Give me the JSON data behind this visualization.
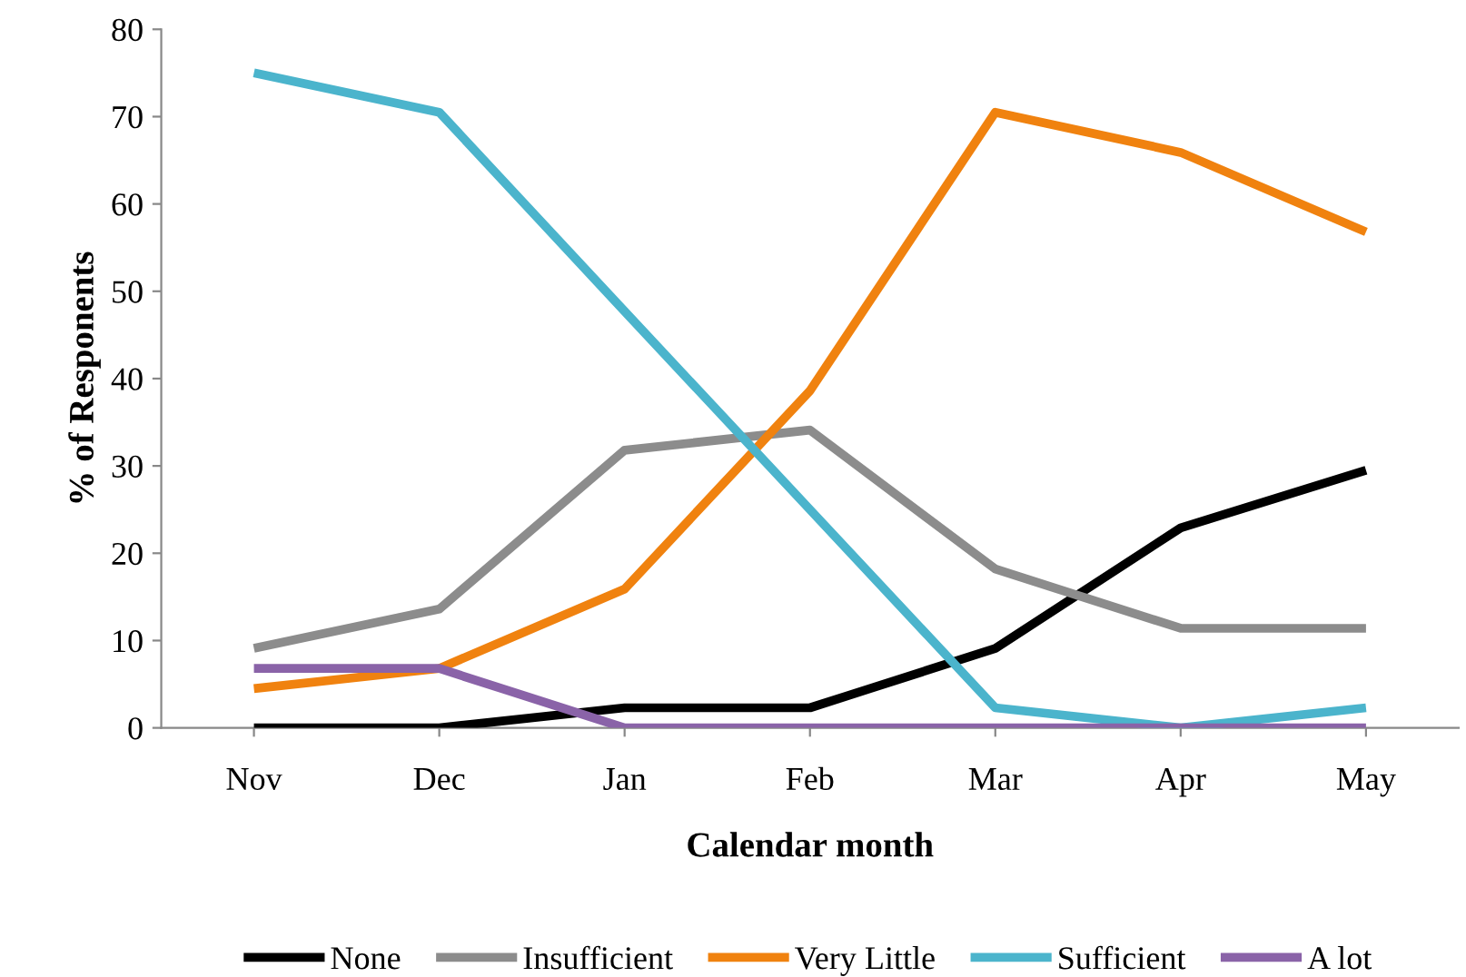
{
  "chart_data": {
    "type": "line",
    "xlabel": "Calendar month",
    "ylabel": "% of Responents",
    "categories": [
      "Nov",
      "Dec",
      "Jan",
      "Feb",
      "Mar",
      "Apr",
      "May"
    ],
    "series": [
      {
        "name": "None",
        "color": "#000000",
        "values": [
          0,
          0,
          2.3,
          2.3,
          9.1,
          22.9,
          29.5
        ]
      },
      {
        "name": "Insufficient",
        "color": "#8c8c8c",
        "values": [
          9.1,
          13.6,
          31.8,
          34.1,
          18.2,
          11.4,
          11.4
        ]
      },
      {
        "name": "Very Little",
        "color": "#f0820f",
        "values": [
          4.5,
          6.8,
          15.9,
          38.6,
          70.5,
          65.9,
          56.8
        ]
      },
      {
        "name": "Sufficient",
        "color": "#4bb4cc",
        "values": [
          75,
          70.5,
          47.7,
          25,
          2.3,
          0,
          2.3
        ]
      },
      {
        "name": "A lot",
        "color": "#8a63a8",
        "values": [
          6.8,
          6.8,
          0,
          0,
          0,
          0,
          0
        ]
      }
    ],
    "ylim": [
      0,
      80
    ],
    "yticks": [
      0,
      10,
      20,
      30,
      40,
      50,
      60,
      70,
      80
    ],
    "grid": false,
    "legend": "bottom",
    "marker": "none",
    "line_style": "solid"
  }
}
